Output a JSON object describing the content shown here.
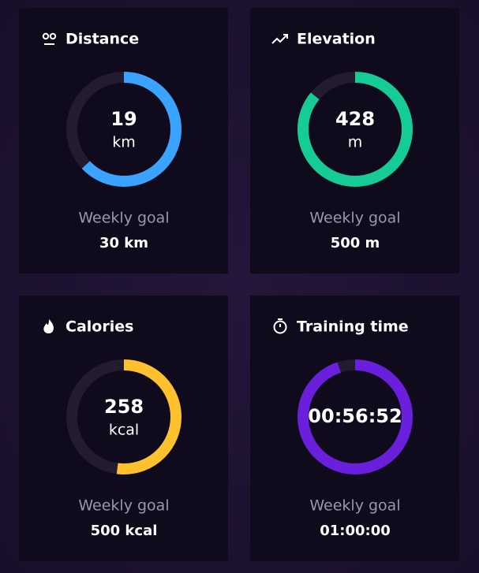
{
  "cards": [
    {
      "title": "Distance",
      "value": 19,
      "unit": "km",
      "goal_label": "Weekly goal",
      "goal": "30 km",
      "progress": 63,
      "color": "#3aa3ff"
    },
    {
      "title": "Elevation",
      "value": 428,
      "unit": "m",
      "goal_label": "Weekly goal",
      "goal": "500 m",
      "progress": 86,
      "color": "#16cc96"
    },
    {
      "title": "Calories",
      "value": 258,
      "unit": "kcal",
      "goal_label": "Weekly goal",
      "goal": "500 kcal",
      "progress": 52,
      "color": "#ffc22e"
    },
    {
      "title": "Training time",
      "value": "00:56:52",
      "goal_label": "Weekly goal",
      "goal": "01:00:00",
      "progress": 95,
      "color": "#6a1fdc"
    }
  ]
}
